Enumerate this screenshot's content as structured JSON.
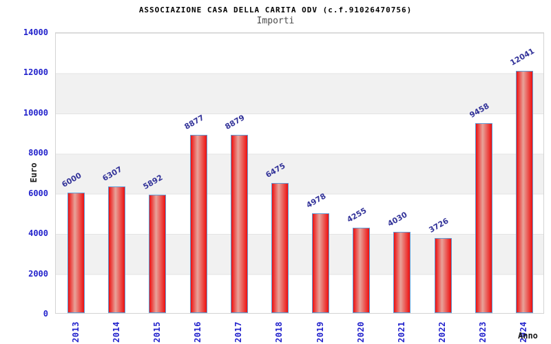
{
  "header": {
    "title": "ASSOCIAZIONE CASA DELLA CARITA ODV (c.f.91026470756)",
    "subtitle": "Importi"
  },
  "chart_data": {
    "type": "bar",
    "title": "ASSOCIAZIONE CASA DELLA CARITA ODV (c.f.91026470756)",
    "subtitle": "Importi",
    "categories": [
      "2013",
      "2014",
      "2015",
      "2016",
      "2017",
      "2018",
      "2019",
      "2020",
      "2021",
      "2022",
      "2023",
      "2024"
    ],
    "values": [
      6000,
      6307,
      5892,
      8877,
      8879,
      6475,
      4978,
      4255,
      4030,
      3726,
      9458,
      12041
    ],
    "xlabel": "Anno",
    "ylabel": "Euro",
    "ylim": [
      0,
      14000
    ],
    "yticks": [
      0,
      2000,
      4000,
      6000,
      8000,
      10000,
      12000,
      14000
    ],
    "legend": "none",
    "grid": "alternating horizontal bands every 2000",
    "colors": {
      "bar_fill": "#ed0f0f",
      "bar_fill_center": "#e8a39a",
      "bar_border": "#5e9dd6",
      "tick_label": "#2222cc",
      "value_label": "#333399",
      "band": "#f1f1f1",
      "plot_border": "#d3d3d3",
      "title": "#000000",
      "subtitle": "#4a4a4a"
    }
  }
}
